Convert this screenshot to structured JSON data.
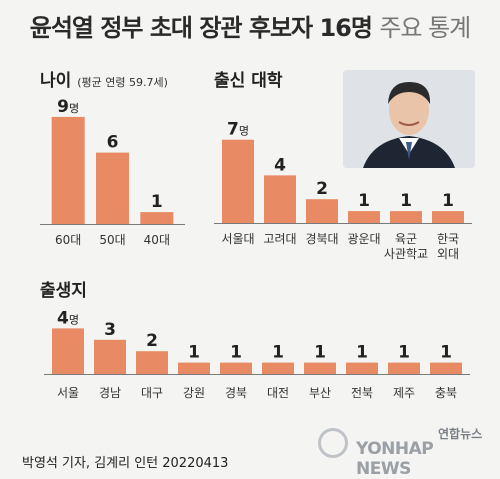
{
  "title": "윤석열 정부 초대 장관 후보자 16명",
  "subtitle": "주요 통계",
  "age_section": {
    "title": "나이",
    "note": "(평균 연령 59.7세)"
  },
  "univ_section": {
    "title": "출신 대학"
  },
  "birth_section": {
    "title": "출생지"
  },
  "unit": "명",
  "credit": "박영석 기자, 김계리 인턴 20220413",
  "logo": {
    "korean": "연합뉴스",
    "english": "YONHAP NEWS"
  },
  "colors": {
    "bar": "#e88a63",
    "axis": "#7a7a7a",
    "background": "#f4f4f2"
  },
  "chart_data": [
    {
      "type": "bar",
      "title": "나이",
      "categories": [
        "60대",
        "50대",
        "40대"
      ],
      "values": [
        9,
        6,
        1
      ],
      "unit": "명"
    },
    {
      "type": "bar",
      "title": "출신 대학",
      "categories": [
        "서울대",
        "고려대",
        "경북대",
        "광운대",
        "육군\n사관학교",
        "한국\n외대"
      ],
      "values": [
        7,
        4,
        2,
        1,
        1,
        1
      ],
      "unit": "명"
    },
    {
      "type": "bar",
      "title": "출생지",
      "categories": [
        "서울",
        "경남",
        "대구",
        "강원",
        "경북",
        "대전",
        "부산",
        "전북",
        "제주",
        "충북"
      ],
      "values": [
        4,
        3,
        2,
        1,
        1,
        1,
        1,
        1,
        1,
        1
      ],
      "unit": "명"
    }
  ]
}
